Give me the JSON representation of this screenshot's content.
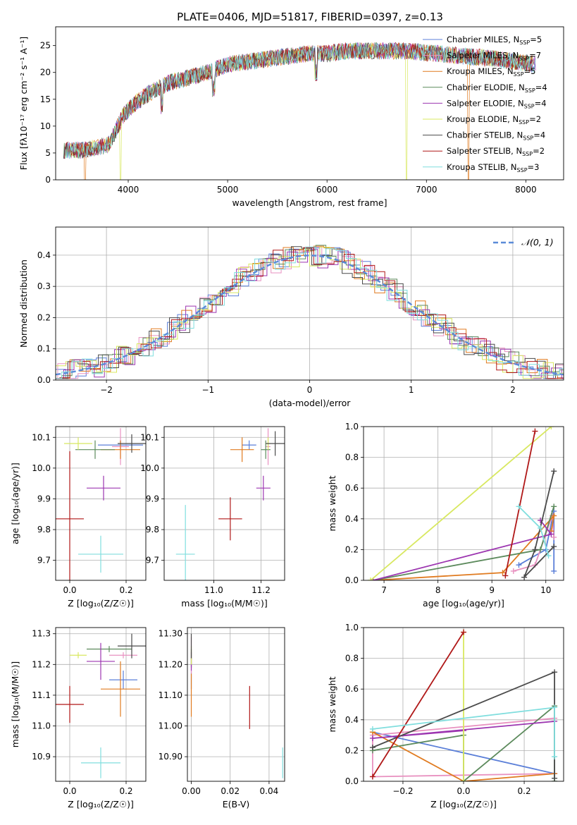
{
  "title": "PLATE=0406, MJD=51817, FIBERID=0397, z=0.13",
  "models": [
    {
      "name": "Chabrier MILES",
      "n": "5",
      "color": "#5b7fd8"
    },
    {
      "name": "Salpeter MILES",
      "n": "7",
      "color": "#e891c0"
    },
    {
      "name": "Kroupa MILES",
      "n": "5",
      "color": "#e07b20"
    },
    {
      "name": "Chabrier ELODIE",
      "n": "4",
      "color": "#5c8a5c"
    },
    {
      "name": "Salpeter ELODIE",
      "n": "4",
      "color": "#9c35b0"
    },
    {
      "name": "Kroupa ELODIE",
      "n": "2",
      "color": "#d8e860"
    },
    {
      "name": "Chabrier STELIB",
      "n": "4",
      "color": "#4a4a4a"
    },
    {
      "name": "Salpeter STELIB",
      "n": "2",
      "color": "#b01818"
    },
    {
      "name": "Kroupa STELIB",
      "n": "3",
      "color": "#80dede"
    }
  ],
  "chart_data": [
    {
      "type": "line",
      "id": "spectrum",
      "xlabel": "wavelength [Angstrom, rest frame]",
      "ylabel": "Flux [fλ10⁻¹⁷ erg cm⁻² s⁻¹ A⁻¹]",
      "xlim": [
        3270,
        8380
      ],
      "ylim": [
        0,
        28.5
      ],
      "xticks": [
        4000,
        5000,
        6000,
        7000,
        8000
      ],
      "yticks": [
        0,
        5,
        10,
        15,
        20,
        25
      ],
      "grid": false,
      "legend": "upper-right",
      "continuum": {
        "x": [
          3350,
          3550,
          3800,
          3950,
          4050,
          4200,
          4400,
          4600,
          4800,
          5000,
          5200,
          5400,
          5600,
          5800,
          6000,
          6200,
          6500,
          6800,
          7100,
          7400,
          7700,
          8100
        ],
        "y": [
          5.5,
          5.5,
          6.5,
          12,
          14,
          16,
          18,
          19,
          20,
          21.5,
          22,
          22.5,
          23,
          23.5,
          23.5,
          24,
          24,
          24,
          23.5,
          23,
          22.5,
          21.5
        ]
      },
      "dropouts": [
        {
          "series": "Kroupa ELODIE",
          "x": 3920
        },
        {
          "series": "Kroupa MILES",
          "x": 3565
        },
        {
          "series": "Kroupa ELODIE",
          "x": 6800
        },
        {
          "series": "Kroupa MILES",
          "x": 7420
        }
      ]
    },
    {
      "type": "area",
      "id": "residuals",
      "xlabel": "(data-model)/error",
      "ylabel": "Normed distribution",
      "xlim": [
        -2.5,
        2.5
      ],
      "ylim": [
        0,
        0.49
      ],
      "xticks": [
        -2,
        -1,
        0,
        1,
        2
      ],
      "yticks": [
        0.0,
        0.1,
        0.2,
        0.3,
        0.4
      ],
      "grid": true,
      "legend": "upper-right",
      "reference": {
        "name": "𝒩(0, 1)",
        "mean": 0,
        "sigma": 1,
        "color": "#5b8bd8"
      },
      "bin_width": 0.1
    },
    {
      "type": "scatter",
      "id": "age-vs-Z",
      "xlabel": "Z [log₁₀(Z/Z☉)]",
      "ylabel": "age  [log₁₀(age/yr)]",
      "xlim": [
        -0.05,
        0.27
      ],
      "ylim": [
        9.635,
        10.135
      ],
      "xticks": [
        0.0,
        0.2
      ],
      "yticks": [
        9.7,
        9.8,
        9.9,
        10.0,
        10.1
      ],
      "grid": true,
      "points": [
        {
          "series": "Chabrier MILES",
          "x": 0.18,
          "y": 10.075,
          "xerr": 0.08,
          "yerr": 0.015
        },
        {
          "series": "Salpeter MILES",
          "x": 0.18,
          "y": 10.07,
          "xerr": 0.03,
          "yerr": 0.06
        },
        {
          "series": "Kroupa MILES",
          "x": 0.18,
          "y": 10.06,
          "xerr": 0.07,
          "yerr": 0.03
        },
        {
          "series": "Chabrier ELODIE",
          "x": 0.09,
          "y": 10.06,
          "xerr": 0.07,
          "yerr": 0.03
        },
        {
          "series": "Salpeter ELODIE",
          "x": 0.12,
          "y": 9.935,
          "xerr": 0.06,
          "yerr": 0.04
        },
        {
          "series": "Kroupa ELODIE",
          "x": 0.03,
          "y": 10.08,
          "xerr": 0.05,
          "yerr": 0.02
        },
        {
          "series": "Chabrier STELIB",
          "x": 0.22,
          "y": 10.08,
          "xerr": 0.05,
          "yerr": 0.03
        },
        {
          "series": "Salpeter STELIB",
          "x": 0.0,
          "y": 9.835,
          "xerr": 0.05,
          "yerr": 0.22
        },
        {
          "series": "Kroupa STELIB",
          "x": 0.11,
          "y": 9.72,
          "xerr": 0.08,
          "yerr": 0.06
        }
      ]
    },
    {
      "type": "scatter",
      "id": "age-vs-mass",
      "xlabel": "mass [log₁₀(M/M☉)]",
      "ylabel": "",
      "xlim": [
        10.79,
        11.3
      ],
      "ylim": [
        9.635,
        10.135
      ],
      "xticks": [
        11.0,
        11.2
      ],
      "yticks": [
        9.7,
        9.8,
        9.9,
        10.0,
        10.1
      ],
      "grid": true,
      "points": [
        {
          "series": "Chabrier MILES",
          "x": 11.15,
          "y": 10.075,
          "xerr": 0.03,
          "yerr": 0.015
        },
        {
          "series": "Salpeter MILES",
          "x": 11.23,
          "y": 10.07,
          "xerr": 0.01,
          "yerr": 0.06
        },
        {
          "series": "Kroupa MILES",
          "x": 11.12,
          "y": 10.06,
          "xerr": 0.05,
          "yerr": 0.04
        },
        {
          "series": "Chabrier ELODIE",
          "x": 11.22,
          "y": 10.06,
          "xerr": 0.02,
          "yerr": 0.03
        },
        {
          "series": "Salpeter ELODIE",
          "x": 11.21,
          "y": 9.935,
          "xerr": 0.03,
          "yerr": 0.04
        },
        {
          "series": "Kroupa ELODIE",
          "x": 11.23,
          "y": 10.08,
          "xerr": 0.01,
          "yerr": 0.02
        },
        {
          "series": "Chabrier STELIB",
          "x": 11.26,
          "y": 10.08,
          "xerr": 0.04,
          "yerr": 0.04
        },
        {
          "series": "Salpeter STELIB",
          "x": 11.07,
          "y": 9.835,
          "xerr": 0.05,
          "yerr": 0.07
        },
        {
          "series": "Kroupa STELIB",
          "x": 10.88,
          "y": 9.72,
          "xerr": 0.04,
          "yerr": 0.16
        }
      ]
    },
    {
      "type": "line",
      "id": "weight-vs-age",
      "xlabel": "age  [log₁₀(age/yr)]",
      "ylabel": "mass weight",
      "xlim": [
        6.62,
        10.33
      ],
      "ylim": [
        0,
        1.0
      ],
      "xticks": [
        7,
        8,
        9,
        10
      ],
      "yticks": [
        0.0,
        0.2,
        0.4,
        0.6,
        0.8,
        1.0
      ],
      "grid": true,
      "series": [
        {
          "name": "Chabrier MILES",
          "x": [
            10.15,
            10.15,
            10.0,
            9.5
          ],
          "y": [
            0.06,
            0.45,
            0.2,
            0.1
          ]
        },
        {
          "name": "Salpeter MILES",
          "x": [
            10.15,
            10.12,
            9.8,
            9.4
          ],
          "y": [
            0.28,
            0.42,
            0.1,
            0.06
          ]
        },
        {
          "name": "Kroupa MILES",
          "x": [
            10.1,
            10.15,
            9.2,
            6.8
          ],
          "y": [
            0.32,
            0.42,
            0.05,
            0.0
          ]
        },
        {
          "name": "Chabrier ELODIE",
          "x": [
            10.15,
            9.9,
            6.8
          ],
          "y": [
            0.48,
            0.2,
            0.0
          ]
        },
        {
          "name": "Salpeter ELODIE",
          "x": [
            9.9,
            10.1,
            6.8
          ],
          "y": [
            0.39,
            0.3,
            0.0
          ]
        },
        {
          "name": "Kroupa ELODIE",
          "x": [
            6.75,
            10.1
          ],
          "y": [
            0.0,
            1.0
          ]
        },
        {
          "name": "Chabrier STELIB",
          "x": [
            10.15,
            9.8,
            9.6,
            10.15
          ],
          "y": [
            0.71,
            0.2,
            0.02,
            0.22
          ]
        },
        {
          "name": "Salpeter STELIB",
          "x": [
            9.25,
            9.8
          ],
          "y": [
            0.03,
            0.97
          ]
        },
        {
          "name": "Kroupa STELIB",
          "x": [
            9.5,
            9.9,
            10.05
          ],
          "y": [
            0.48,
            0.34,
            0.16
          ]
        }
      ]
    },
    {
      "type": "scatter",
      "id": "mass-vs-Z",
      "xlabel": "Z [log₁₀(Z/Z☉)]",
      "ylabel": "mass [log₁₀(M/M☉)]",
      "xlim": [
        -0.05,
        0.27
      ],
      "ylim": [
        10.82,
        11.32
      ],
      "xticks": [
        0.0,
        0.2
      ],
      "yticks": [
        10.9,
        11.0,
        11.1,
        11.2,
        11.3
      ],
      "grid": true,
      "points": [
        {
          "series": "Chabrier MILES",
          "x": 0.19,
          "y": 11.15,
          "xerr": 0.05,
          "yerr": 0.03
        },
        {
          "series": "Salpeter MILES",
          "x": 0.19,
          "y": 11.23,
          "xerr": 0.05,
          "yerr": 0.01
        },
        {
          "series": "Kroupa MILES",
          "x": 0.18,
          "y": 11.12,
          "xerr": 0.07,
          "yerr": 0.09
        },
        {
          "series": "Chabrier ELODIE",
          "x": 0.14,
          "y": 11.25,
          "xerr": 0.08,
          "yerr": 0.01
        },
        {
          "series": "Salpeter ELODIE",
          "x": 0.11,
          "y": 11.21,
          "xerr": 0.05,
          "yerr": 0.06
        },
        {
          "series": "Kroupa ELODIE",
          "x": 0.03,
          "y": 11.23,
          "xerr": 0.03,
          "yerr": 0.01
        },
        {
          "series": "Chabrier STELIB",
          "x": 0.22,
          "y": 11.26,
          "xerr": 0.05,
          "yerr": 0.04
        },
        {
          "series": "Salpeter STELIB",
          "x": 0.0,
          "y": 11.07,
          "xerr": 0.05,
          "yerr": 0.06
        },
        {
          "series": "Kroupa STELIB",
          "x": 0.11,
          "y": 10.88,
          "xerr": 0.07,
          "yerr": 0.05
        }
      ]
    },
    {
      "type": "scatter",
      "id": "mass-vs-EBV",
      "xlabel": "E(B-V)",
      "ylabel": "",
      "xlim": [
        -0.002,
        0.048
      ],
      "ylim": [
        10.82,
        11.32
      ],
      "xticks": [
        0.0,
        0.02,
        0.04
      ],
      "yticks": [
        10.9,
        11.0,
        11.1,
        11.2,
        11.3
      ],
      "grid": true,
      "points": [
        {
          "series": "Chabrier MILES",
          "x": 0.0,
          "y": 11.15,
          "yerr": 0.03
        },
        {
          "series": "Salpeter MILES",
          "x": 0.0,
          "y": 11.23,
          "yerr": 0.06
        },
        {
          "series": "Kroupa MILES",
          "x": 0.0,
          "y": 11.1,
          "yerr": 0.07
        },
        {
          "series": "Chabrier ELODIE",
          "x": 0.0,
          "y": 11.22,
          "yerr": 0.03
        },
        {
          "series": "Salpeter ELODIE",
          "x": 0.0,
          "y": 11.21,
          "yerr": 0.03
        },
        {
          "series": "Kroupa ELODIE",
          "x": 0.0,
          "y": 11.23,
          "yerr": 0.03
        },
        {
          "series": "Chabrier STELIB",
          "x": 0.0,
          "y": 11.26,
          "yerr": 0.04
        },
        {
          "series": "Salpeter STELIB",
          "x": 0.03,
          "y": 11.06,
          "yerr": 0.07
        },
        {
          "series": "Kroupa STELIB",
          "x": 0.047,
          "y": 10.88,
          "yerr": 0.05
        }
      ]
    },
    {
      "type": "line",
      "id": "weight-vs-Z",
      "xlabel": "Z [log₁₀(Z/Z☉)]",
      "ylabel": "mass weight",
      "xlim": [
        -0.33,
        0.33
      ],
      "ylim": [
        0,
        1.0
      ],
      "xticks": [
        -0.2,
        0.0,
        0.2
      ],
      "yticks": [
        0.0,
        0.2,
        0.4,
        0.6,
        0.8,
        1.0
      ],
      "grid": true,
      "series": [
        {
          "name": "Chabrier MILES",
          "x": [
            -0.3,
            0.3
          ],
          "y": [
            0.32,
            0.05
          ]
        },
        {
          "name": "Salpeter MILES",
          "x": [
            0.3,
            -0.3,
            -0.3,
            0.0,
            0.3
          ],
          "y": [
            0.41,
            0.3,
            0.03,
            0.04,
            0.05
          ]
        },
        {
          "name": "Kroupa MILES",
          "x": [
            -0.3,
            0.0,
            0.3
          ],
          "y": [
            0.32,
            0.0,
            0.05
          ]
        },
        {
          "name": "Chabrier ELODIE",
          "x": [
            -0.3,
            0.0,
            0.0,
            0.3,
            0.3
          ],
          "y": [
            0.2,
            0.3,
            0.0,
            0.49,
            0.0
          ]
        },
        {
          "name": "Salpeter ELODIE",
          "x": [
            0.3,
            -0.3,
            0.0
          ],
          "y": [
            0.39,
            0.28,
            0.33
          ]
        },
        {
          "name": "Kroupa ELODIE",
          "x": [
            0.0,
            0.0
          ],
          "y": [
            0.97,
            0.0
          ]
        },
        {
          "name": "Chabrier STELIB",
          "x": [
            -0.3,
            0.3,
            0.3
          ],
          "y": [
            0.22,
            0.71,
            0.02
          ]
        },
        {
          "name": "Salpeter STELIB",
          "x": [
            -0.3,
            0.0
          ],
          "y": [
            0.03,
            0.97
          ]
        },
        {
          "name": "Kroupa STELIB",
          "x": [
            -0.3,
            0.3,
            0.3
          ],
          "y": [
            0.34,
            0.48,
            0.16
          ]
        }
      ]
    }
  ]
}
